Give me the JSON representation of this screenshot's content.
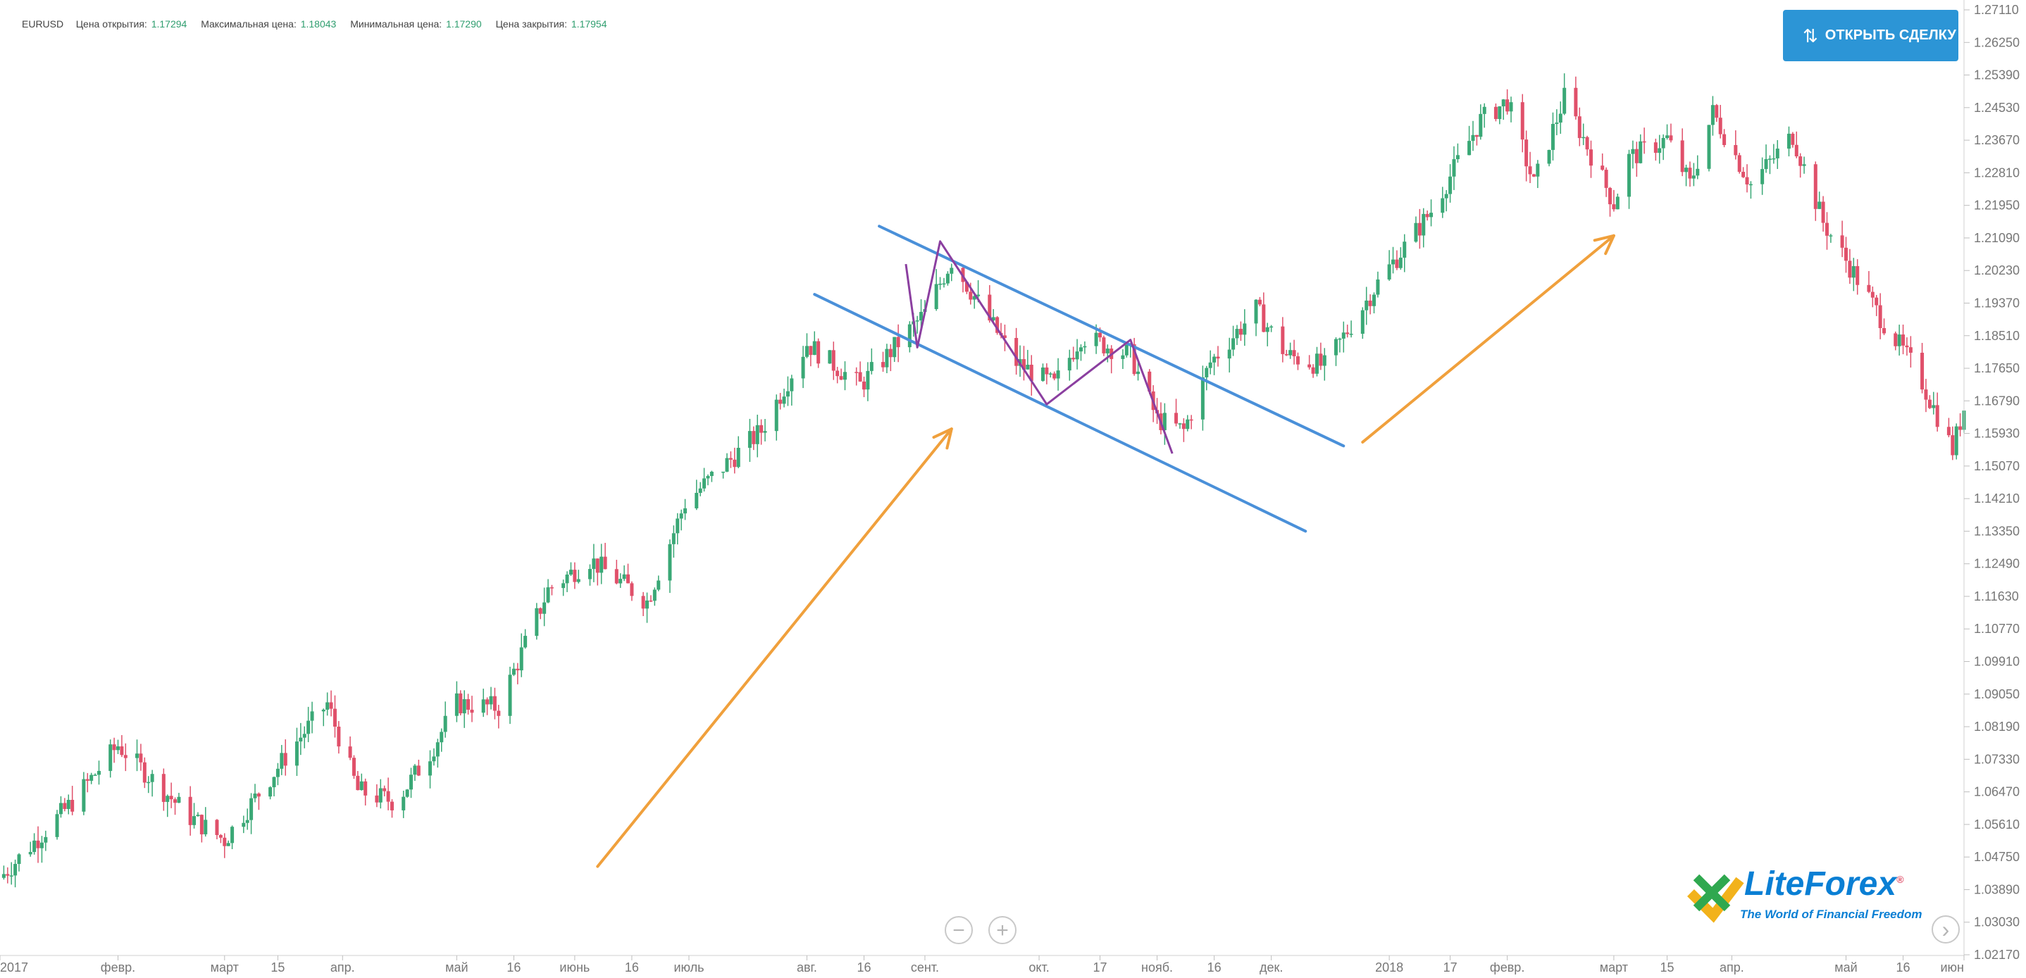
{
  "header": {
    "symbol": "EURUSD",
    "open_label": "Цена открытия:",
    "open_value": "1.17294",
    "high_label": "Максимальная цена:",
    "high_value": "1.18043",
    "low_label": "Минимальная цена:",
    "low_value": "1.17290",
    "close_label": "Цена закрытия:",
    "close_value": "1.17954"
  },
  "toolbar": {
    "open_trade_label": "ОТКРЫТЬ СДЕЛКУ",
    "zoom_out_label": "−",
    "zoom_in_label": "+",
    "next_label": "›"
  },
  "logo": {
    "brand": "LiteForex",
    "registered": "®",
    "tagline": "The World of Financial Freedom"
  },
  "colors": {
    "up_candle": "#3aa876",
    "down_candle": "#e0506a",
    "channel": "#4a90d9",
    "trend_arrow": "#f0a03c",
    "zigzag": "#8b3fa0",
    "button": "#2c95d6",
    "axis_text": "#777777"
  },
  "chart_data": {
    "type": "candlestick",
    "symbol": "EURUSD",
    "ylim": [
      1.0217,
      1.2711
    ],
    "y_ticks": [
      "1.27110",
      "1.26250",
      "1.25390",
      "1.24530",
      "1.23670",
      "1.22810",
      "1.21950",
      "1.21090",
      "1.20230",
      "1.19370",
      "1.18510",
      "1.17650",
      "1.16790",
      "1.15930",
      "1.15070",
      "1.14210",
      "1.13350",
      "1.12490",
      "1.11630",
      "1.10770",
      "1.09910",
      "1.09050",
      "1.08190",
      "1.07330",
      "1.06470",
      "1.05610",
      "1.04750",
      "1.03890",
      "1.03030",
      "1.02170"
    ],
    "x_ticks": [
      "2017",
      "февр.",
      "март",
      "15",
      "апр.",
      "май",
      "16",
      "июнь",
      "16",
      "июль",
      "авг.",
      "16",
      "сент.",
      "окт.",
      "17",
      "нояб.",
      "16",
      "дек.",
      "2018",
      "17",
      "февр.",
      "март",
      "15",
      "апр.",
      "май",
      "16",
      "июн"
    ],
    "x_range": [
      "2017-01-01",
      "2018-06-01"
    ],
    "price_path": [
      {
        "date": "2017-01-01",
        "price": 1.042
      },
      {
        "date": "2017-01-20",
        "price": 1.062
      },
      {
        "date": "2017-02-01",
        "price": 1.077
      },
      {
        "date": "2017-02-20",
        "price": 1.058
      },
      {
        "date": "2017-03-01",
        "price": 1.052
      },
      {
        "date": "2017-03-20",
        "price": 1.078
      },
      {
        "date": "2017-03-28",
        "price": 1.088
      },
      {
        "date": "2017-04-05",
        "price": 1.065
      },
      {
        "date": "2017-04-15",
        "price": 1.062
      },
      {
        "date": "2017-04-24",
        "price": 1.075
      },
      {
        "date": "2017-05-01",
        "price": 1.088
      },
      {
        "date": "2017-05-12",
        "price": 1.087
      },
      {
        "date": "2017-05-25",
        "price": 1.118
      },
      {
        "date": "2017-06-05",
        "price": 1.126
      },
      {
        "date": "2017-06-20",
        "price": 1.115
      },
      {
        "date": "2017-06-30",
        "price": 1.141
      },
      {
        "date": "2017-07-20",
        "price": 1.16
      },
      {
        "date": "2017-08-01",
        "price": 1.183
      },
      {
        "date": "2017-08-15",
        "price": 1.172
      },
      {
        "date": "2017-09-01",
        "price": 1.191
      },
      {
        "date": "2017-09-08",
        "price": 1.205
      },
      {
        "date": "2017-09-25",
        "price": 1.178
      },
      {
        "date": "2017-10-05",
        "price": 1.172
      },
      {
        "date": "2017-10-12",
        "price": 1.185
      },
      {
        "date": "2017-10-25",
        "price": 1.18
      },
      {
        "date": "2017-11-01",
        "price": 1.163
      },
      {
        "date": "2017-11-08",
        "price": 1.16
      },
      {
        "date": "2017-11-15",
        "price": 1.178
      },
      {
        "date": "2017-11-27",
        "price": 1.192
      },
      {
        "date": "2017-12-05",
        "price": 1.18
      },
      {
        "date": "2017-12-15",
        "price": 1.177
      },
      {
        "date": "2017-12-29",
        "price": 1.199
      },
      {
        "date": "2018-01-12",
        "price": 1.218
      },
      {
        "date": "2018-01-25",
        "price": 1.242
      },
      {
        "date": "2018-02-01",
        "price": 1.247
      },
      {
        "date": "2018-02-08",
        "price": 1.225
      },
      {
        "date": "2018-02-16",
        "price": 1.248
      },
      {
        "date": "2018-03-01",
        "price": 1.22
      },
      {
        "date": "2018-03-05",
        "price": 1.232
      },
      {
        "date": "2018-03-15",
        "price": 1.237
      },
      {
        "date": "2018-03-21",
        "price": 1.225
      },
      {
        "date": "2018-03-27",
        "price": 1.244
      },
      {
        "date": "2018-04-06",
        "price": 1.225
      },
      {
        "date": "2018-04-17",
        "price": 1.238
      },
      {
        "date": "2018-04-25",
        "price": 1.215
      },
      {
        "date": "2018-05-10",
        "price": 1.19
      },
      {
        "date": "2018-05-20",
        "price": 1.175
      },
      {
        "date": "2018-05-29",
        "price": 1.155
      },
      {
        "date": "2018-06-01",
        "price": 1.166
      }
    ],
    "annotations": {
      "channel_upper": [
        {
          "date": "2017-08-20",
          "price": 1.214
        },
        {
          "date": "2017-12-20",
          "price": 1.156
        }
      ],
      "channel_lower": [
        {
          "date": "2017-08-03",
          "price": 1.196
        },
        {
          "date": "2017-12-10",
          "price": 1.1335
        }
      ],
      "zigzag": [
        {
          "date": "2017-08-27",
          "price": 1.204
        },
        {
          "date": "2017-08-30",
          "price": 1.182
        },
        {
          "date": "2017-09-05",
          "price": 1.21
        },
        {
          "date": "2017-10-03",
          "price": 1.167
        },
        {
          "date": "2017-10-25",
          "price": 1.184
        },
        {
          "date": "2017-11-05",
          "price": 1.154
        }
      ],
      "arrow_1": [
        {
          "date": "2017-06-07",
          "price": 1.045
        },
        {
          "date": "2017-09-08",
          "price": 1.1605
        }
      ],
      "arrow_2": [
        {
          "date": "2017-12-25",
          "price": 1.157
        },
        {
          "date": "2018-03-01",
          "price": 1.2115
        }
      ]
    },
    "grid": false,
    "legend": "none"
  }
}
